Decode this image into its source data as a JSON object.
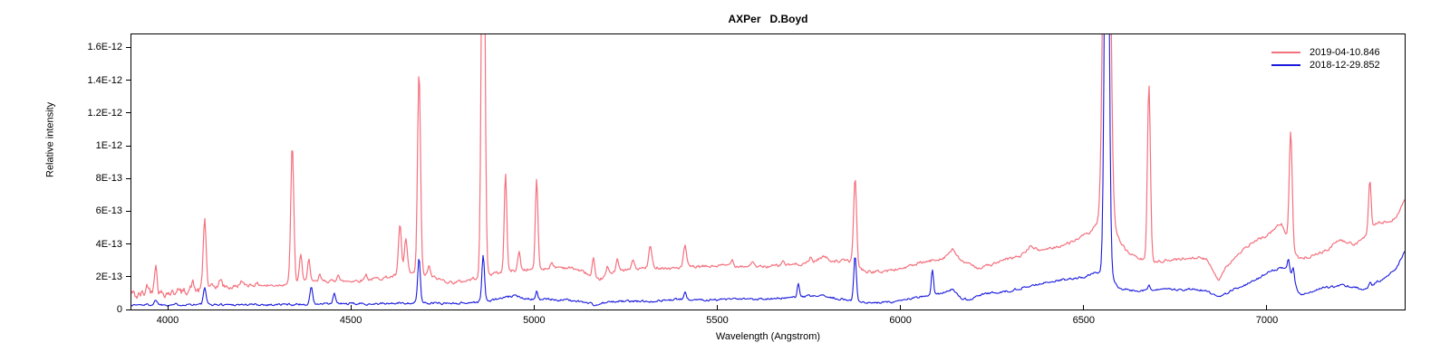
{
  "title": "AXPer   D.Boyd",
  "chart_data": {
    "type": "line",
    "title": "AXPer   D.Boyd",
    "xlabel": "Wavelength (Angstrom)",
    "ylabel": "Relative intensity",
    "xlim": [
      3901,
      7376
    ],
    "ylim": [
      0,
      1.68e-12
    ],
    "grid": false,
    "legend_position": "top-right",
    "value_unit": 1e-13,
    "x_ticks": [
      {
        "value": 4000,
        "label": "4000"
      },
      {
        "value": 4500,
        "label": "4500"
      },
      {
        "value": 5000,
        "label": "5000"
      },
      {
        "value": 5500,
        "label": "5500"
      },
      {
        "value": 6000,
        "label": "6000"
      },
      {
        "value": 6500,
        "label": "6500"
      },
      {
        "value": 7000,
        "label": "7000"
      }
    ],
    "y_ticks": [
      {
        "value": 0,
        "label": "0"
      },
      {
        "value": 2,
        "label": "2E-13"
      },
      {
        "value": 4,
        "label": "4E-13"
      },
      {
        "value": 6,
        "label": "6E-13"
      },
      {
        "value": 8,
        "label": "8E-13"
      },
      {
        "value": 10,
        "label": "1E-12"
      },
      {
        "value": 12,
        "label": "1.2E-12"
      },
      {
        "value": 14,
        "label": "1.4E-12"
      },
      {
        "value": 16,
        "label": "1.6E-12"
      }
    ],
    "series": [
      {
        "name": "2019-04-10.846",
        "color": "#f4717e",
        "line_width": 1.2,
        "noise_seed": 42,
        "noise_amp": [
          [
            3901,
            0.5
          ],
          [
            4000,
            0.45
          ],
          [
            4150,
            0.28
          ],
          [
            4300,
            0.17
          ],
          [
            7376,
            0.15
          ]
        ],
        "continuum": [
          [
            3901,
            1.05
          ],
          [
            3915,
            0.8
          ],
          [
            3930,
            0.95
          ],
          [
            3955,
            1.15
          ],
          [
            3975,
            1.0
          ],
          [
            4000,
            1.05
          ],
          [
            4018,
            1.0
          ],
          [
            4040,
            1.05
          ],
          [
            4060,
            1.25
          ],
          [
            4085,
            1.15
          ],
          [
            4110,
            1.3
          ],
          [
            4140,
            1.45
          ],
          [
            4170,
            1.35
          ],
          [
            4210,
            1.5
          ],
          [
            4245,
            1.55
          ],
          [
            4270,
            1.45
          ],
          [
            4300,
            1.5
          ],
          [
            4330,
            1.6
          ],
          [
            4360,
            1.7
          ],
          [
            4395,
            1.65
          ],
          [
            4430,
            1.75
          ],
          [
            4470,
            1.7
          ],
          [
            4500,
            1.75
          ],
          [
            4540,
            1.8
          ],
          [
            4575,
            1.9
          ],
          [
            4610,
            2.0
          ],
          [
            4645,
            2.2
          ],
          [
            4680,
            2.2
          ],
          [
            4710,
            2.1
          ],
          [
            4740,
            1.85
          ],
          [
            4775,
            1.65
          ],
          [
            4800,
            1.7
          ],
          [
            4830,
            1.85
          ],
          [
            4860,
            2.1
          ],
          [
            4890,
            2.2
          ],
          [
            4920,
            2.3
          ],
          [
            4950,
            2.4
          ],
          [
            4990,
            2.45
          ],
          [
            5030,
            2.5
          ],
          [
            5070,
            2.6
          ],
          [
            5110,
            2.5
          ],
          [
            5145,
            2.2
          ],
          [
            5165,
            1.7
          ],
          [
            5185,
            1.9
          ],
          [
            5215,
            2.3
          ],
          [
            5250,
            2.4
          ],
          [
            5290,
            2.5
          ],
          [
            5330,
            2.6
          ],
          [
            5370,
            2.5
          ],
          [
            5410,
            2.6
          ],
          [
            5450,
            2.6
          ],
          [
            5490,
            2.65
          ],
          [
            5530,
            2.7
          ],
          [
            5570,
            2.65
          ],
          [
            5610,
            2.6
          ],
          [
            5650,
            2.65
          ],
          [
            5690,
            2.7
          ],
          [
            5730,
            2.8
          ],
          [
            5765,
            2.95
          ],
          [
            5790,
            3.25
          ],
          [
            5810,
            3.0
          ],
          [
            5835,
            2.95
          ],
          [
            5858,
            3.0
          ],
          [
            5885,
            2.55
          ],
          [
            5910,
            2.3
          ],
          [
            5940,
            2.3
          ],
          [
            5975,
            2.4
          ],
          [
            6010,
            2.55
          ],
          [
            6050,
            2.8
          ],
          [
            6090,
            3.0
          ],
          [
            6120,
            3.2
          ],
          [
            6142,
            3.65
          ],
          [
            6160,
            3.1
          ],
          [
            6185,
            2.75
          ],
          [
            6215,
            2.55
          ],
          [
            6250,
            2.75
          ],
          [
            6290,
            3.05
          ],
          [
            6330,
            3.3
          ],
          [
            6357,
            3.9
          ],
          [
            6375,
            3.6
          ],
          [
            6400,
            3.7
          ],
          [
            6430,
            3.85
          ],
          [
            6455,
            4.0
          ],
          [
            6480,
            4.3
          ],
          [
            6510,
            4.6
          ],
          [
            6540,
            5.2
          ],
          [
            6563,
            5.5
          ],
          [
            6590,
            4.6
          ],
          [
            6615,
            3.6
          ],
          [
            6640,
            3.2
          ],
          [
            6670,
            3.0
          ],
          [
            6700,
            2.95
          ],
          [
            6730,
            3.0
          ],
          [
            6770,
            3.1
          ],
          [
            6805,
            3.2
          ],
          [
            6835,
            3.05
          ],
          [
            6853,
            2.4
          ],
          [
            6868,
            1.8
          ],
          [
            6885,
            2.5
          ],
          [
            6905,
            3.0
          ],
          [
            6930,
            3.5
          ],
          [
            6955,
            4.0
          ],
          [
            6980,
            4.3
          ],
          [
            7005,
            4.6
          ],
          [
            7025,
            5.0
          ],
          [
            7040,
            5.3
          ],
          [
            7052,
            4.5
          ],
          [
            7075,
            3.6
          ],
          [
            7090,
            3.1
          ],
          [
            7110,
            3.2
          ],
          [
            7140,
            3.45
          ],
          [
            7165,
            3.6
          ],
          [
            7195,
            4.25
          ],
          [
            7215,
            4.1
          ],
          [
            7240,
            4.0
          ],
          [
            7262,
            4.3
          ],
          [
            7285,
            4.9
          ],
          [
            7305,
            5.35
          ],
          [
            7325,
            5.3
          ],
          [
            7345,
            5.5
          ],
          [
            7360,
            5.9
          ],
          [
            7376,
            6.7
          ]
        ],
        "emission_lines": [
          [
            3945,
            0.5,
            3
          ],
          [
            3967,
            1.7,
            4
          ],
          [
            4026,
            0.35,
            3
          ],
          [
            4068,
            0.45,
            3
          ],
          [
            4101,
            4.3,
            4
          ],
          [
            4145,
            0.45,
            3
          ],
          [
            4200,
            0.3,
            3
          ],
          [
            4340,
            8.4,
            4
          ],
          [
            4363,
            1.7,
            3.5
          ],
          [
            4385,
            1.5,
            3.5
          ],
          [
            4415,
            0.4,
            3
          ],
          [
            4465,
            0.5,
            3.5
          ],
          [
            4541,
            0.35,
            3.5
          ],
          [
            4634,
            3.0,
            4
          ],
          [
            4650,
            2.1,
            4
          ],
          [
            4686,
            12.4,
            4
          ],
          [
            4713,
            0.6,
            3
          ],
          [
            4861,
            30,
            4.5
          ],
          [
            4922,
            6.0,
            3.5
          ],
          [
            4959,
            1.1,
            3.5
          ],
          [
            5007,
            5.5,
            3.5
          ],
          [
            5047,
            0.35,
            3
          ],
          [
            5162,
            1.3,
            3.5
          ],
          [
            5200,
            0.5,
            3
          ],
          [
            5227,
            0.8,
            3.5
          ],
          [
            5270,
            0.6,
            3.5
          ],
          [
            5317,
            1.3,
            4
          ],
          [
            5412,
            1.3,
            4
          ],
          [
            5540,
            0.4,
            3.5
          ],
          [
            5595,
            0.35,
            3.5
          ],
          [
            5680,
            0.3,
            3.5
          ],
          [
            5755,
            0.3,
            3
          ],
          [
            5876,
            5.4,
            4
          ],
          [
            6563,
            40,
            8
          ],
          [
            6678,
            10.8,
            4
          ],
          [
            7065,
            7.0,
            4
          ],
          [
            7281,
            3.1,
            3.5
          ]
        ]
      },
      {
        "name": "2018-12-29.852",
        "color": "#1a1adc",
        "line_width": 1.1,
        "noise_seed": 1337,
        "noise_amp": [
          [
            3901,
            0.12
          ],
          [
            7376,
            0.12
          ]
        ],
        "continuum": [
          [
            3901,
            0.28
          ],
          [
            3960,
            0.3
          ],
          [
            4000,
            0.3
          ],
          [
            4060,
            0.32
          ],
          [
            4120,
            0.3
          ],
          [
            4180,
            0.3
          ],
          [
            4240,
            0.3
          ],
          [
            4300,
            0.3
          ],
          [
            4360,
            0.32
          ],
          [
            4420,
            0.33
          ],
          [
            4480,
            0.35
          ],
          [
            4540,
            0.35
          ],
          [
            4600,
            0.36
          ],
          [
            4650,
            0.4
          ],
          [
            4700,
            0.42
          ],
          [
            4750,
            0.38
          ],
          [
            4800,
            0.4
          ],
          [
            4845,
            0.45
          ],
          [
            4880,
            0.55
          ],
          [
            4915,
            0.7
          ],
          [
            4945,
            0.82
          ],
          [
            4975,
            0.7
          ],
          [
            5010,
            0.62
          ],
          [
            5060,
            0.6
          ],
          [
            5110,
            0.55
          ],
          [
            5150,
            0.4
          ],
          [
            5168,
            0.25
          ],
          [
            5190,
            0.4
          ],
          [
            5230,
            0.5
          ],
          [
            5280,
            0.5
          ],
          [
            5330,
            0.52
          ],
          [
            5380,
            0.6
          ],
          [
            5415,
            0.65
          ],
          [
            5460,
            0.6
          ],
          [
            5510,
            0.6
          ],
          [
            5560,
            0.62
          ],
          [
            5610,
            0.65
          ],
          [
            5660,
            0.68
          ],
          [
            5710,
            0.72
          ],
          [
            5750,
            0.8
          ],
          [
            5780,
            0.85
          ],
          [
            5815,
            0.72
          ],
          [
            5845,
            0.62
          ],
          [
            5875,
            0.55
          ],
          [
            5900,
            0.42
          ],
          [
            5930,
            0.38
          ],
          [
            5965,
            0.45
          ],
          [
            6000,
            0.55
          ],
          [
            6040,
            0.72
          ],
          [
            6075,
            0.8
          ],
          [
            6110,
            1.0
          ],
          [
            6140,
            1.25
          ],
          [
            6165,
            0.7
          ],
          [
            6190,
            0.6
          ],
          [
            6220,
            0.9
          ],
          [
            6260,
            1.05
          ],
          [
            6300,
            1.15
          ],
          [
            6340,
            1.4
          ],
          [
            6380,
            1.55
          ],
          [
            6420,
            1.75
          ],
          [
            6460,
            1.85
          ],
          [
            6500,
            2.0
          ],
          [
            6530,
            2.2
          ],
          [
            6563,
            2.3
          ],
          [
            6600,
            1.25
          ],
          [
            6640,
            1.15
          ],
          [
            6680,
            1.2
          ],
          [
            6720,
            1.2
          ],
          [
            6760,
            1.22
          ],
          [
            6800,
            1.25
          ],
          [
            6835,
            1.12
          ],
          [
            6853,
            0.9
          ],
          [
            6868,
            0.72
          ],
          [
            6885,
            0.95
          ],
          [
            6910,
            1.2
          ],
          [
            6940,
            1.5
          ],
          [
            6970,
            1.8
          ],
          [
            7000,
            2.25
          ],
          [
            7025,
            2.45
          ],
          [
            7048,
            2.6
          ],
          [
            7070,
            2.2
          ],
          [
            7085,
            1.1
          ],
          [
            7100,
            0.9
          ],
          [
            7125,
            1.1
          ],
          [
            7150,
            1.3
          ],
          [
            7180,
            1.4
          ],
          [
            7210,
            1.5
          ],
          [
            7235,
            1.35
          ],
          [
            7260,
            1.25
          ],
          [
            7285,
            1.45
          ],
          [
            7310,
            1.8
          ],
          [
            7335,
            2.2
          ],
          [
            7355,
            2.6
          ],
          [
            7376,
            3.5
          ]
        ],
        "emission_lines": [
          [
            3968,
            0.28,
            4
          ],
          [
            4101,
            1.05,
            3.5
          ],
          [
            4392,
            1.1,
            3.5
          ],
          [
            4455,
            0.62,
            3.5
          ],
          [
            4686,
            2.75,
            3.5
          ],
          [
            4861,
            2.85,
            3.5
          ],
          [
            5007,
            0.5,
            3
          ],
          [
            5412,
            0.35,
            3
          ],
          [
            5721,
            0.8,
            3
          ],
          [
            5876,
            2.75,
            3.5
          ],
          [
            6087,
            1.6,
            3
          ],
          [
            6563,
            35,
            5.5
          ],
          [
            6678,
            0.3,
            3
          ],
          [
            7059,
            0.7,
            2.5
          ],
          [
            7072,
            0.55,
            2.5
          ],
          [
            7281,
            0.25,
            3
          ]
        ]
      }
    ]
  }
}
